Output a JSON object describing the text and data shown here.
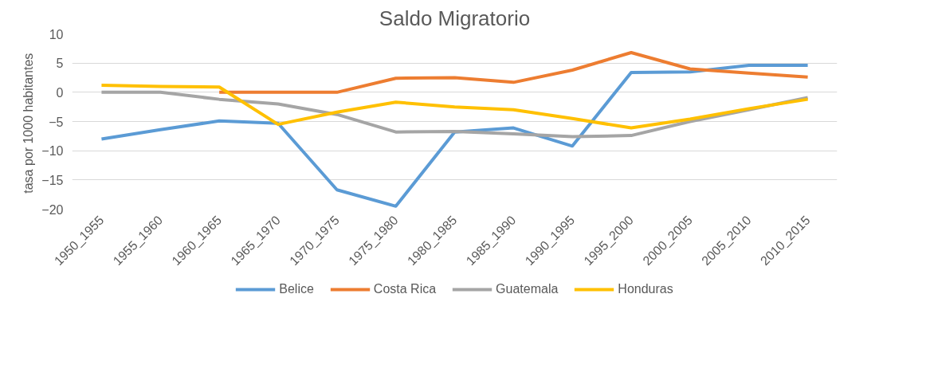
{
  "chart_data": {
    "type": "line",
    "title": "Saldo Migratorio",
    "ylabel": "tasa  por 1000 habitantes",
    "categories": [
      "1950_1955",
      "1955_1960",
      "1960_1965",
      "1965_1970",
      "1970_1975",
      "1975_1980",
      "1980_1985",
      "1985_1990",
      "1990_1995",
      "1995_2000",
      "2000_2005",
      "2005_2010",
      "2010_2015"
    ],
    "series": [
      {
        "name": "Belice",
        "color": "#5b9bd5",
        "values": [
          -8,
          -6.4,
          -4.9,
          -5.3,
          -16.7,
          -19.5,
          -6.8,
          -6.1,
          -9.2,
          3.4,
          3.5,
          4.6,
          4.6
        ]
      },
      {
        "name": "Costa Rica",
        "color": "#ed7d31",
        "values": [
          null,
          null,
          0,
          0,
          0,
          2.4,
          2.5,
          1.7,
          3.8,
          6.8,
          4.0,
          3.3,
          2.6
        ]
      },
      {
        "name": "Guatemala",
        "color": "#a5a5a5",
        "values": [
          0,
          0,
          -1.2,
          -2,
          -3.8,
          -6.8,
          -6.7,
          -7.1,
          -7.6,
          -7.4,
          -5,
          -3,
          -0.9
        ]
      },
      {
        "name": "Honduras",
        "color": "#ffc000",
        "values": [
          1.2,
          1.0,
          0.9,
          -5.5,
          -3.4,
          -1.7,
          -2.5,
          -3,
          -4.5,
          -6.1,
          -4.6,
          -2.8,
          -1.2
        ]
      }
    ],
    "ylim": [
      -20,
      10
    ],
    "yticks": [
      -20,
      -15,
      -10,
      -5,
      0,
      5,
      10
    ],
    "grid": "y",
    "legend": "bottom",
    "marker": "none",
    "line_style": "solid"
  }
}
